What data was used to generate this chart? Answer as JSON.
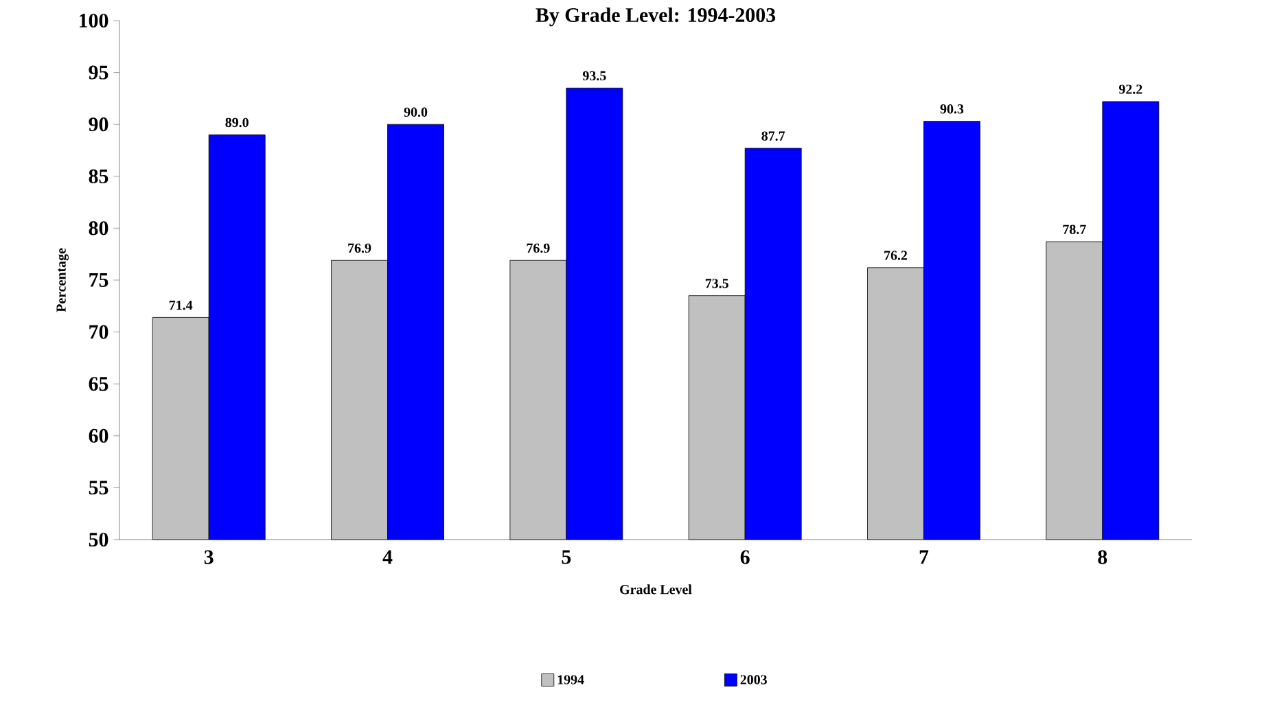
{
  "chart_data": {
    "type": "bar",
    "title": "By Grade Level: 1994-2003",
    "xlabel": "Grade Level",
    "ylabel": "Percentage",
    "categories": [
      "3",
      "4",
      "5",
      "6",
      "7",
      "8"
    ],
    "series": [
      {
        "name": "1994",
        "color": "#c0c0c0",
        "values": [
          71.4,
          76.9,
          76.9,
          73.5,
          76.2,
          78.7
        ],
        "value_labels": [
          "71.4",
          "76.9",
          "76.9",
          "73.5",
          "76.2",
          "78.7"
        ]
      },
      {
        "name": "2003",
        "color": "#0000ff",
        "values": [
          89.0,
          90.0,
          93.5,
          87.7,
          90.3,
          92.2
        ],
        "value_labels": [
          "89.0",
          "90.0",
          "93.5",
          "87.7",
          "90.3",
          "92.2"
        ]
      }
    ],
    "ylim": [
      50,
      100
    ],
    "yticks": [
      50,
      55,
      60,
      65,
      70,
      75,
      80,
      85,
      90,
      95,
      100
    ],
    "grid": false,
    "legend": "bottom"
  }
}
